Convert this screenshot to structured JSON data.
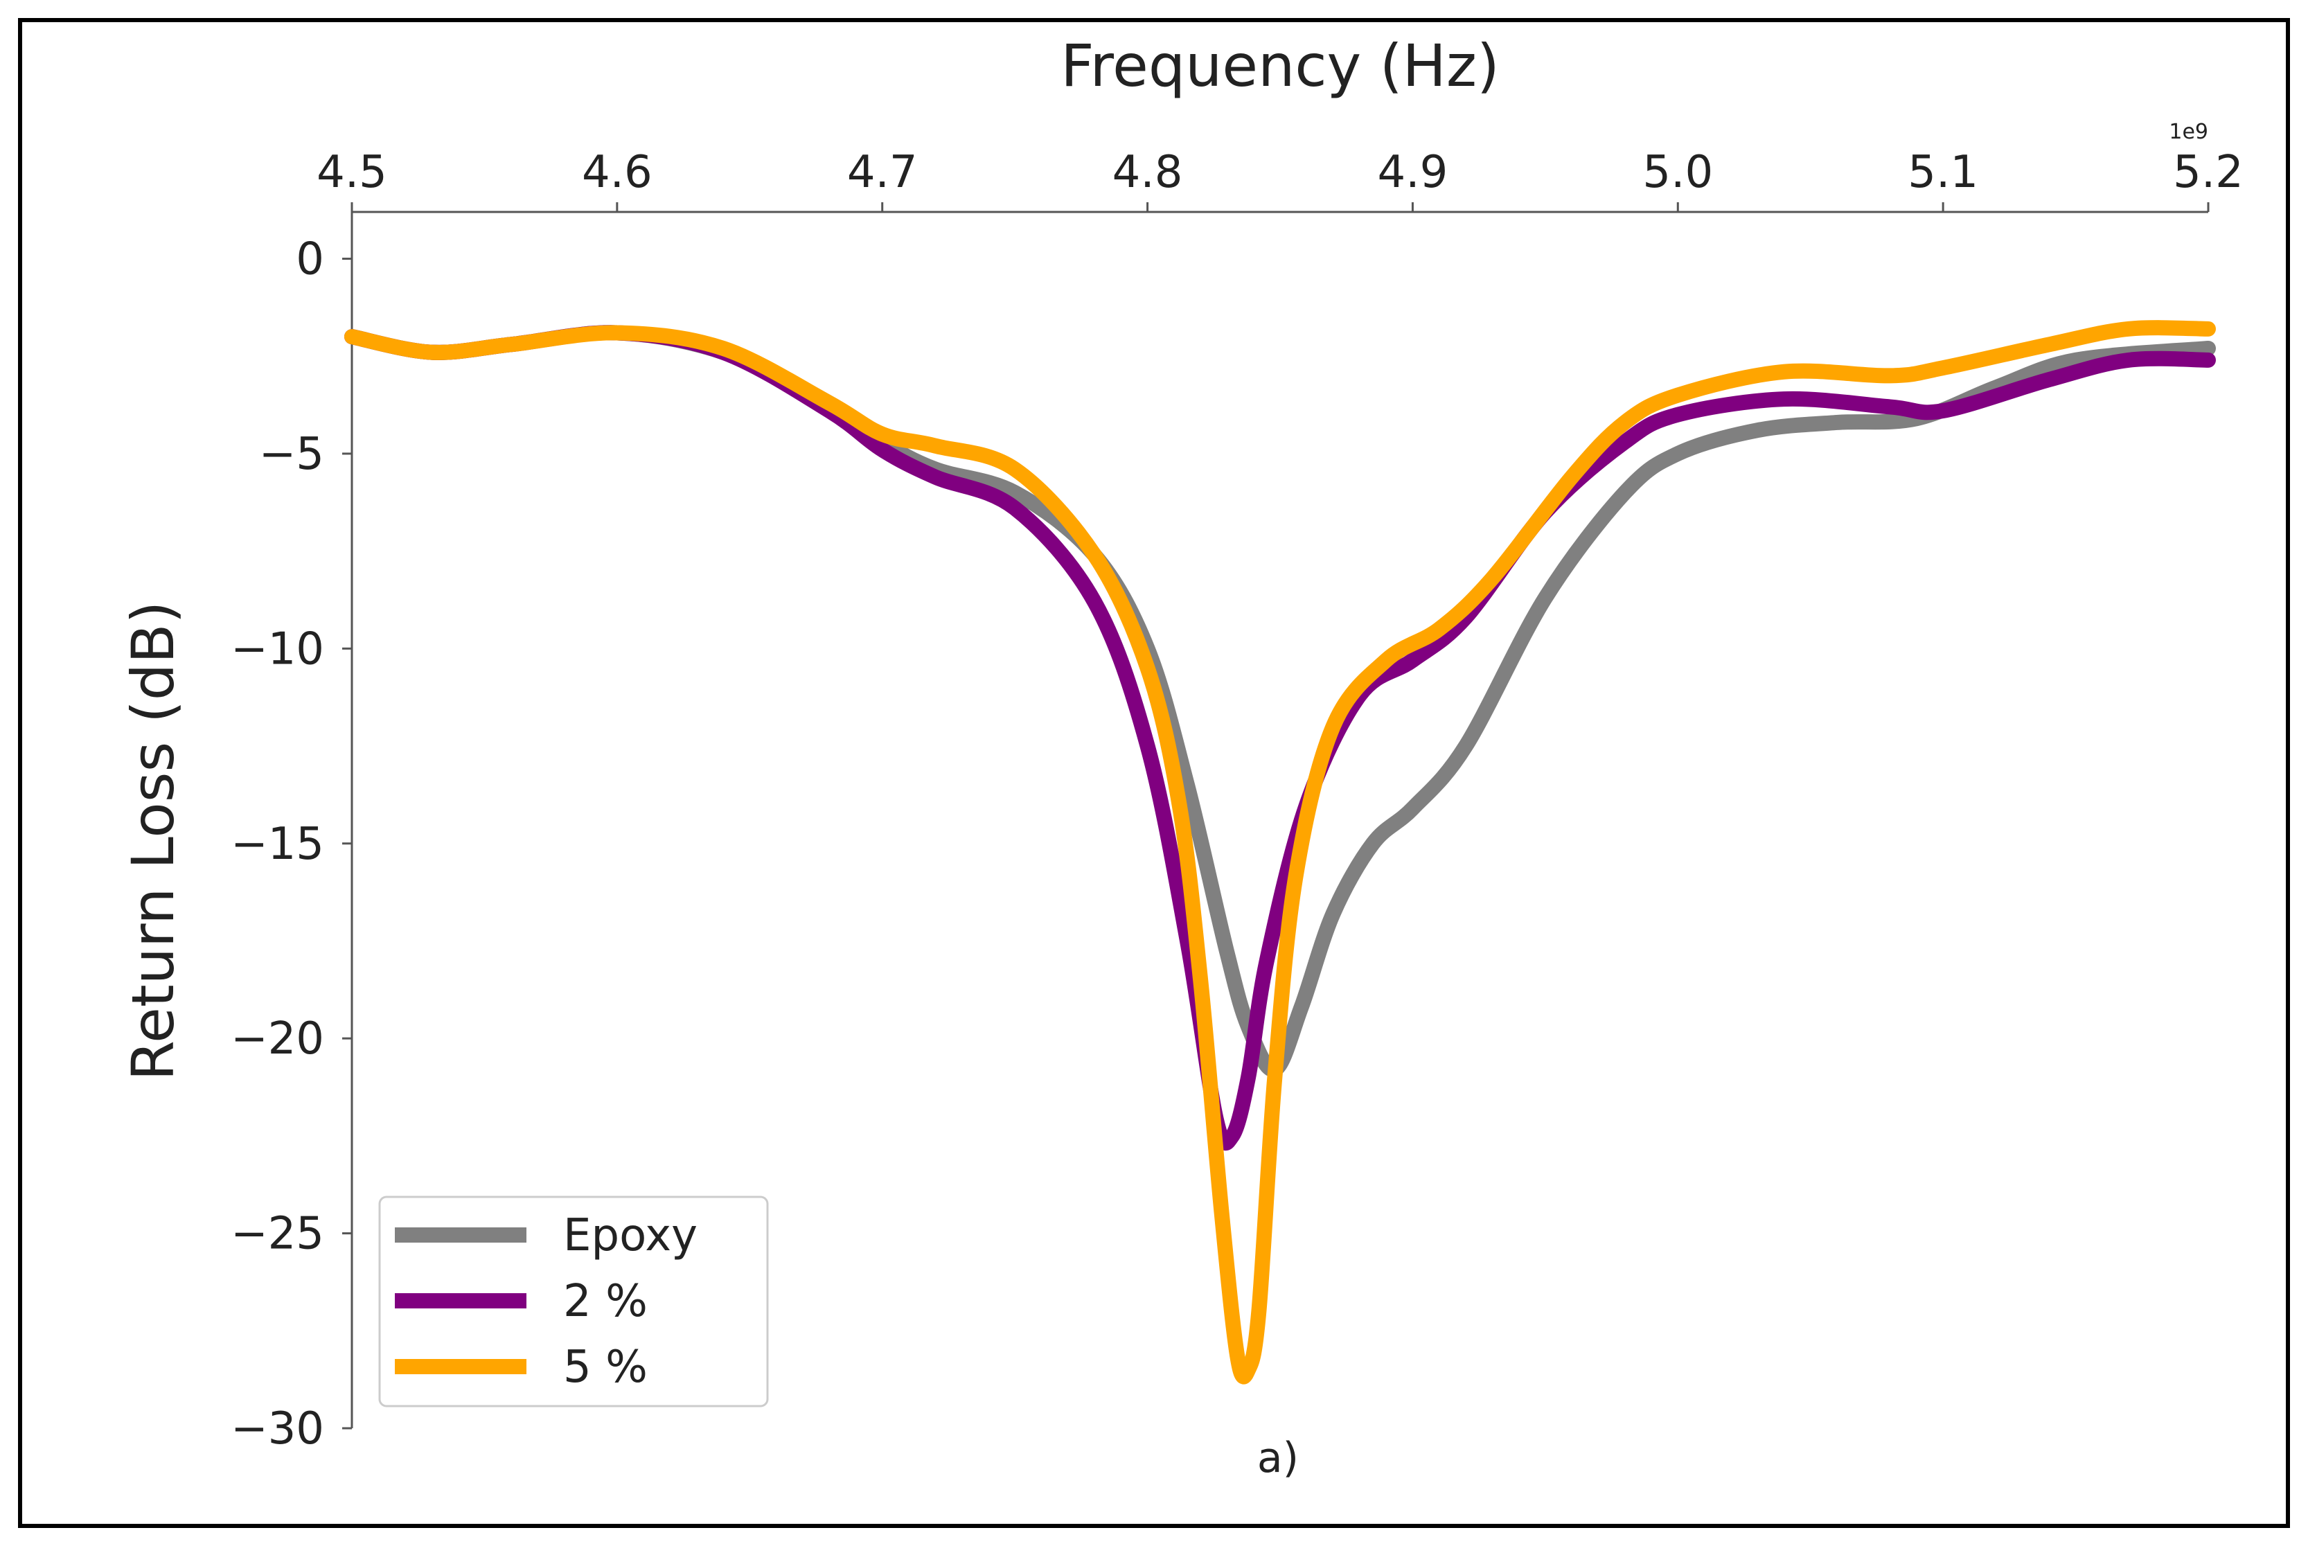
{
  "chart_data": {
    "type": "line",
    "title": "",
    "xlabel": "Frequency (Hz)",
    "ylabel": "Return Loss (dB)",
    "x_offset_label": "1e9",
    "caption": "a)",
    "xlim": [
      4.5,
      5.2
    ],
    "ylim": [
      -30,
      1.2
    ],
    "x_ticks": [
      4.5,
      4.6,
      4.7,
      4.8,
      4.9,
      5.0,
      5.1,
      5.2
    ],
    "x_tick_labels": [
      "4.5",
      "4.6",
      "4.7",
      "4.8",
      "4.9",
      "5.0",
      "5.1",
      "5.2"
    ],
    "y_ticks": [
      0,
      -5,
      -10,
      -15,
      -20,
      -25,
      -30
    ],
    "y_tick_labels": [
      "0",
      "−5",
      "−10",
      "−15",
      "−20",
      "−25",
      "−30"
    ],
    "x_axis_position": "top",
    "legend_position": "lower-left",
    "series": [
      {
        "name": "Epoxy",
        "color": "#808080",
        "x": [
          4.5,
          4.53,
          4.56,
          4.6,
          4.64,
          4.68,
          4.7,
          4.72,
          4.75,
          4.78,
          4.8,
          4.815,
          4.83,
          4.838,
          4.848,
          4.858,
          4.87,
          4.885,
          4.9,
          4.92,
          4.95,
          4.98,
          5.0,
          5.03,
          5.06,
          5.09,
          5.12,
          5.15,
          5.2
        ],
        "values": [
          -2.0,
          -2.4,
          -2.2,
          -1.9,
          -2.4,
          -3.7,
          -4.7,
          -5.4,
          -6.0,
          -7.6,
          -10.0,
          -13.5,
          -17.8,
          -19.7,
          -20.8,
          -19.2,
          -16.8,
          -15.0,
          -14.1,
          -12.5,
          -8.7,
          -6.0,
          -5.0,
          -4.4,
          -4.2,
          -4.1,
          -3.3,
          -2.6,
          -2.3
        ]
      },
      {
        "name": "2 %",
        "color": "#800080",
        "x": [
          4.5,
          4.53,
          4.56,
          4.6,
          4.64,
          4.68,
          4.7,
          4.72,
          4.75,
          4.78,
          4.8,
          4.815,
          4.826,
          4.832,
          4.838,
          4.845,
          4.86,
          4.88,
          4.9,
          4.92,
          4.95,
          4.98,
          5.0,
          5.04,
          5.08,
          5.1,
          5.14,
          5.17,
          5.2
        ],
        "values": [
          -2.0,
          -2.4,
          -2.2,
          -1.9,
          -2.4,
          -3.9,
          -4.9,
          -5.6,
          -6.4,
          -8.8,
          -12.5,
          -17.5,
          -22.1,
          -22.5,
          -21.0,
          -18.0,
          -14.0,
          -11.2,
          -10.3,
          -9.2,
          -6.5,
          -4.7,
          -4.0,
          -3.6,
          -3.8,
          -3.9,
          -3.1,
          -2.6,
          -2.6
        ]
      },
      {
        "name": "5 %",
        "color": "#FFA500",
        "x": [
          4.5,
          4.53,
          4.56,
          4.6,
          4.64,
          4.68,
          4.7,
          4.72,
          4.75,
          4.78,
          4.8,
          4.812,
          4.82,
          4.828,
          4.834,
          4.838,
          4.842,
          4.848,
          4.856,
          4.87,
          4.89,
          4.91,
          4.93,
          4.96,
          4.98,
          5.0,
          5.04,
          5.08,
          5.1,
          5.14,
          5.17,
          5.2
        ],
        "values": [
          -2.0,
          -2.4,
          -2.2,
          -1.9,
          -2.3,
          -3.7,
          -4.5,
          -4.8,
          -5.4,
          -7.6,
          -10.5,
          -14.0,
          -18.5,
          -24.5,
          -28.2,
          -28.5,
          -27.0,
          -21.0,
          -15.8,
          -12.0,
          -10.3,
          -9.5,
          -8.2,
          -5.6,
          -4.2,
          -3.5,
          -2.9,
          -3.0,
          -2.8,
          -2.2,
          -1.8,
          -1.8
        ]
      }
    ]
  }
}
